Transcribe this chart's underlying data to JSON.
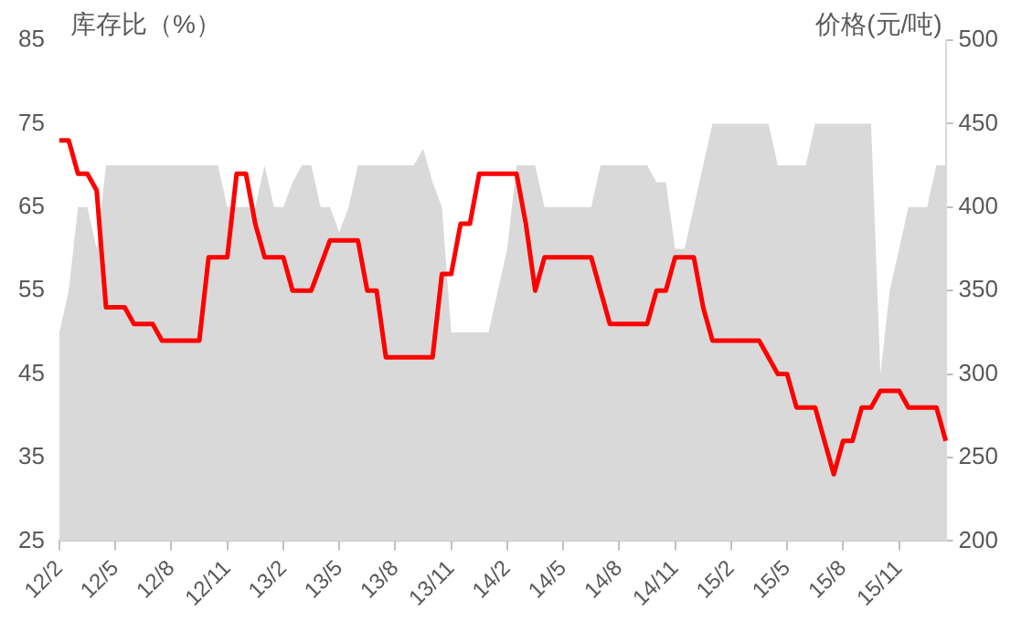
{
  "chart_data": {
    "type": "line",
    "ylabel": "库存比（%）",
    "y2label": "价格(元/吨)",
    "categories": [
      "12/2",
      null,
      null,
      null,
      null,
      null,
      "12/5",
      null,
      null,
      null,
      null,
      null,
      "12/8",
      null,
      null,
      null,
      null,
      null,
      "12/11",
      null,
      null,
      null,
      null,
      null,
      "13/2",
      null,
      null,
      null,
      null,
      null,
      "13/5",
      null,
      null,
      null,
      null,
      null,
      "13/8",
      null,
      null,
      null,
      null,
      null,
      "13/11",
      null,
      null,
      null,
      null,
      null,
      "14/2",
      null,
      null,
      null,
      null,
      null,
      "14/5",
      null,
      null,
      null,
      null,
      null,
      "14/8",
      null,
      null,
      null,
      null,
      null,
      "14/11",
      null,
      null,
      null,
      null,
      null,
      "15/2",
      null,
      null,
      null,
      null,
      null,
      "15/5",
      null,
      null,
      null,
      null,
      null,
      "15/8",
      null,
      null,
      null,
      null,
      null,
      "15/11",
      null,
      null,
      null,
      null,
      null
    ],
    "series": [
      {
        "type": "area",
        "color": "#d9d9d9",
        "values": [
          50,
          55,
          65,
          65,
          60,
          70,
          70,
          70,
          70,
          70,
          70,
          70,
          70,
          70,
          70,
          70,
          70,
          70,
          65,
          65,
          65,
          65,
          70,
          65,
          65,
          68,
          70,
          70,
          65,
          65,
          62,
          65,
          70,
          70,
          70,
          70,
          70,
          70,
          70,
          72,
          68,
          65,
          50,
          50,
          50,
          50,
          50,
          55,
          60,
          70,
          70,
          70,
          65,
          65,
          65,
          65,
          65,
          65,
          70,
          70,
          70,
          70,
          70,
          70,
          68,
          68,
          60,
          60,
          65,
          70,
          75,
          75,
          75,
          75,
          75,
          75,
          75,
          70,
          70,
          70,
          70,
          75,
          75,
          75,
          75,
          75,
          75,
          75,
          45,
          55,
          60,
          65,
          65,
          65,
          70,
          70
        ]
      },
      {
        "type": "line",
        "axis": "y2",
        "color": "#ff0000",
        "values": [
          440,
          440,
          420,
          420,
          410,
          340,
          340,
          340,
          330,
          330,
          330,
          320,
          320,
          320,
          320,
          320,
          370,
          370,
          370,
          420,
          420,
          390,
          370,
          370,
          370,
          350,
          350,
          350,
          365,
          380,
          380,
          380,
          380,
          350,
          350,
          310,
          310,
          310,
          310,
          310,
          310,
          360,
          360,
          390,
          390,
          420,
          420,
          420,
          420,
          420,
          390,
          350,
          370,
          370,
          370,
          370,
          370,
          370,
          350,
          330,
          330,
          330,
          330,
          330,
          350,
          350,
          370,
          370,
          370,
          340,
          320,
          320,
          320,
          320,
          320,
          320,
          310,
          300,
          300,
          280,
          280,
          280,
          260,
          240,
          260,
          260,
          280,
          280,
          290,
          290,
          290,
          280,
          280,
          280,
          280,
          260
        ]
      }
    ],
    "ylim": [
      25,
      85
    ],
    "yticks": [
      25,
      35,
      45,
      55,
      65,
      75,
      85
    ],
    "y2lim": [
      200,
      500
    ],
    "y2ticks": [
      200,
      250,
      300,
      350,
      400,
      450,
      500
    ],
    "grid": false,
    "legend": false,
    "marker": "none",
    "line_style": "solid"
  }
}
